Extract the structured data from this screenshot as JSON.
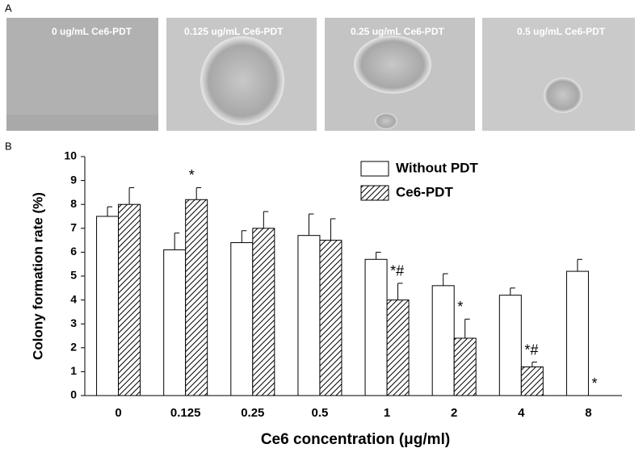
{
  "panel_a": {
    "label": "A",
    "images": [
      "0 ug/mL  Ce6-PDT",
      "0.125 ug/mL  Ce6-PDT",
      "0.25 ug/mL  Ce6-PDT",
      "0.5 ug/mL  Ce6-PDT"
    ]
  },
  "chart_data": {
    "type": "bar",
    "panel_label": "B",
    "x_label": "Ce6 concentration (μg/ml)",
    "y_label": "Colony formation rate (%)",
    "categories": [
      "0",
      "0.125",
      "0.25",
      "0.5",
      "1",
      "2",
      "4",
      "8"
    ],
    "series": [
      {
        "name": "Without PDT",
        "color": "#ffffff",
        "values": [
          7.5,
          6.1,
          6.4,
          6.7,
          5.7,
          4.6,
          4.2,
          5.2
        ],
        "errors": [
          0.4,
          0.7,
          0.5,
          0.9,
          0.3,
          0.5,
          0.3,
          0.5
        ]
      },
      {
        "name": "Ce6-PDT",
        "color": "hatch",
        "values": [
          8.0,
          8.2,
          7.0,
          6.5,
          4.0,
          2.4,
          1.2,
          0
        ],
        "errors": [
          0.7,
          0.5,
          0.7,
          0.9,
          0.7,
          0.8,
          0.2,
          0
        ],
        "significance": [
          null,
          "*",
          null,
          null,
          "*#",
          "*",
          "*#",
          "*"
        ]
      }
    ],
    "ylim": [
      0,
      10
    ],
    "yticks": [
      0,
      1,
      2,
      3,
      4,
      5,
      6,
      7,
      8,
      9,
      10
    ],
    "grid": false,
    "legend": "top-right"
  }
}
